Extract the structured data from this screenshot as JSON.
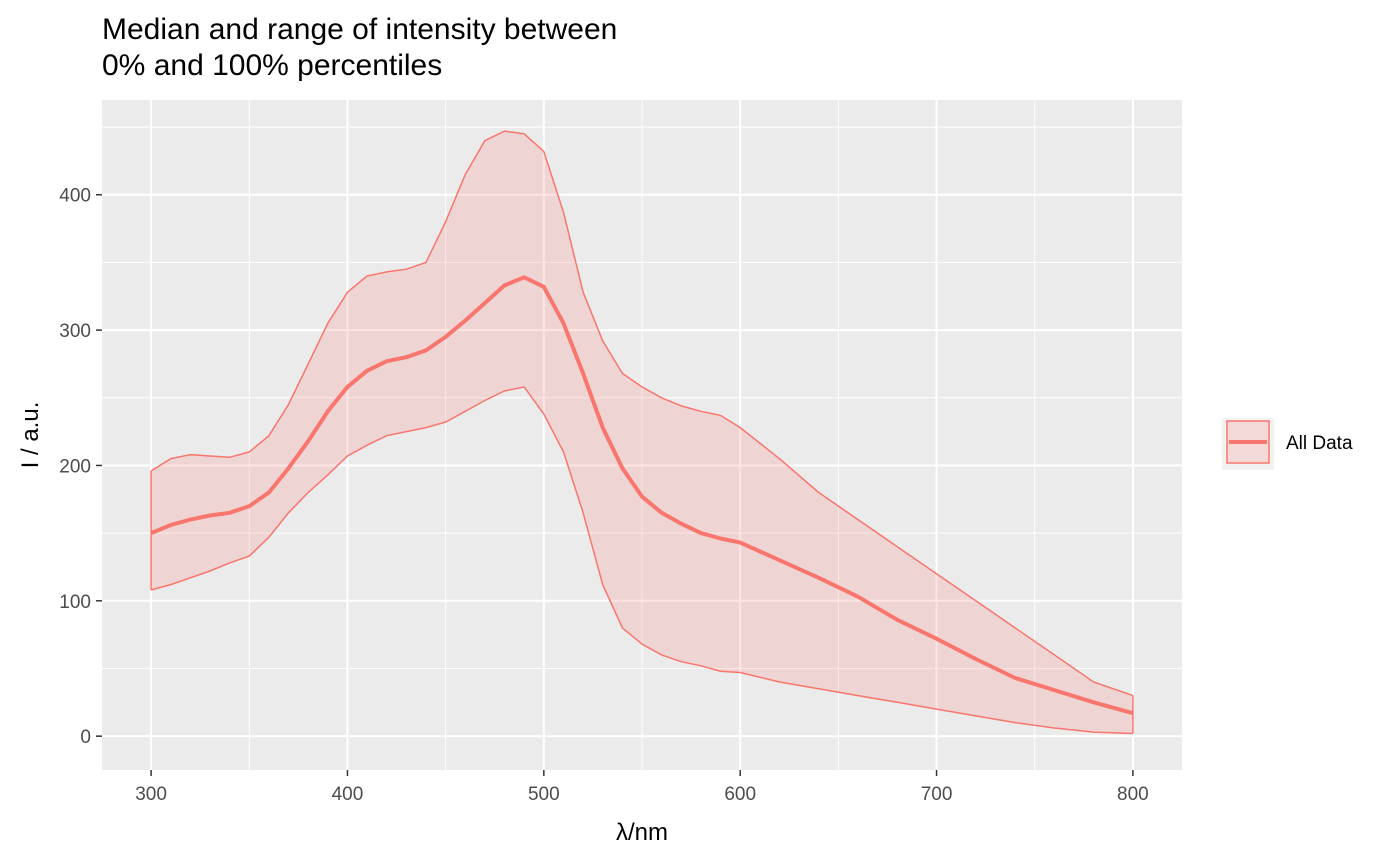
{
  "chart_data": {
    "type": "area",
    "title_line1": "Median and range of intensity between",
    "title_line2": "0% and 100% percentiles",
    "xlabel": "λ/nm",
    "ylabel": "I / a.u.",
    "xlim": [
      275,
      825
    ],
    "ylim": [
      -25,
      470
    ],
    "x_ticks": [
      300,
      400,
      500,
      600,
      700,
      800
    ],
    "y_ticks": [
      0,
      100,
      200,
      300,
      400
    ],
    "grid": true,
    "legend_position": "right",
    "colors": {
      "line": "#F8766D",
      "fill": "#F8766D",
      "panel": "#EBEBEB",
      "grid": "#FFFFFF"
    },
    "series": [
      {
        "name": "All Data",
        "x": [
          300,
          310,
          320,
          330,
          340,
          350,
          360,
          370,
          380,
          390,
          400,
          410,
          420,
          430,
          440,
          450,
          460,
          470,
          480,
          490,
          500,
          510,
          520,
          530,
          540,
          550,
          560,
          570,
          580,
          590,
          600,
          620,
          640,
          660,
          680,
          700,
          720,
          740,
          760,
          780,
          800
        ],
        "median": [
          150,
          156,
          160,
          163,
          165,
          170,
          180,
          198,
          218,
          240,
          258,
          270,
          277,
          280,
          285,
          295,
          307,
          320,
          333,
          339,
          332,
          305,
          268,
          228,
          198,
          177,
          165,
          157,
          150,
          146,
          143,
          130,
          117,
          103,
          86,
          72,
          57,
          43,
          34,
          25,
          17
        ],
        "min": [
          108,
          112,
          117,
          122,
          128,
          133,
          147,
          165,
          180,
          193,
          207,
          215,
          222,
          225,
          228,
          232,
          240,
          248,
          255,
          258,
          238,
          210,
          165,
          112,
          80,
          68,
          60,
          55,
          52,
          48,
          47,
          40,
          35,
          30,
          25,
          20,
          15,
          10,
          6,
          3,
          2
        ],
        "max": [
          196,
          205,
          208,
          207,
          206,
          210,
          222,
          245,
          275,
          305,
          328,
          340,
          343,
          345,
          350,
          380,
          415,
          440,
          447,
          445,
          432,
          387,
          328,
          292,
          268,
          258,
          250,
          244,
          240,
          237,
          228,
          205,
          180,
          160,
          140,
          120,
          100,
          80,
          60,
          40,
          30
        ]
      }
    ]
  }
}
